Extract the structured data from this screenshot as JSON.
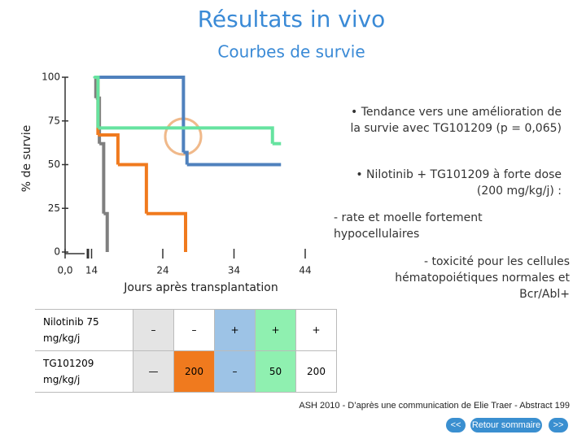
{
  "title": "Résultats in vivo",
  "subtitle": "Courbes de survie",
  "chart_data": {
    "type": "line",
    "step": true,
    "xlabel": "Jours après transplantation",
    "ylabel": "% de survie",
    "xlim": [
      0,
      46
    ],
    "xticks": [
      {
        "value": 0,
        "label": "0,0"
      },
      14,
      24,
      34,
      44
    ],
    "ylim": [
      0,
      100
    ],
    "yticks": [
      0,
      25,
      50,
      75,
      100
    ],
    "series": [
      {
        "color": "#7f7f7f",
        "x": [
          14.4,
          14.6,
          15.1,
          15.7,
          16.2
        ],
        "values": [
          100,
          88,
          62,
          22,
          0
        ]
      },
      {
        "color": "#f07a1e",
        "x": [
          14.6,
          14.9,
          17.7,
          21.7,
          27.2
        ],
        "values": [
          100,
          67,
          50,
          22,
          0
        ]
      },
      {
        "color": "#4f81bd",
        "x": [
          14.6,
          26.9,
          27.4,
          40.6
        ],
        "values": [
          100,
          57,
          50,
          50
        ]
      },
      {
        "color": "#66e3a0",
        "x": [
          14.4,
          14.9,
          39.4,
          40.6
        ],
        "values": [
          100,
          71,
          62,
          62
        ]
      }
    ]
  },
  "notes": [
    {
      "text": "• Tendance vers une amélioration de la survie avec TG101209 (p = 0,065)"
    },
    {
      "text": "• Nilotinib + TG101209 à forte dose (200 mg/kg/j) :"
    },
    {
      "text": "- rate et moelle fortement hypocellulaires"
    },
    {
      "text": "- toxicité pour les cellules hématopoiétiques normales et Bcr/Abl+"
    }
  ],
  "table": {
    "rows": [
      {
        "label": "Nilotinib 75 mg/kg/j",
        "cells": [
          "–",
          "–",
          "+",
          "+",
          "+"
        ],
        "colors": [
          "#e4e4e4",
          "#ffffff",
          "#9dc3e6",
          "#8ff0b0",
          "#ffffff"
        ]
      },
      {
        "label": "TG101209 mg/kg/j",
        "cells": [
          "—",
          "200",
          "–",
          "50",
          "200"
        ],
        "colors": [
          "#e4e4e4",
          "#f07a1e",
          "#9dc3e6",
          "#8ff0b0",
          "#ffffff"
        ]
      }
    ]
  },
  "footer": {
    "source": "ASH 2010 - D’après une communication de Elie Traer - Abstract 199",
    "buttons": [
      "<<",
      "Retour sommaire",
      ">>"
    ]
  }
}
